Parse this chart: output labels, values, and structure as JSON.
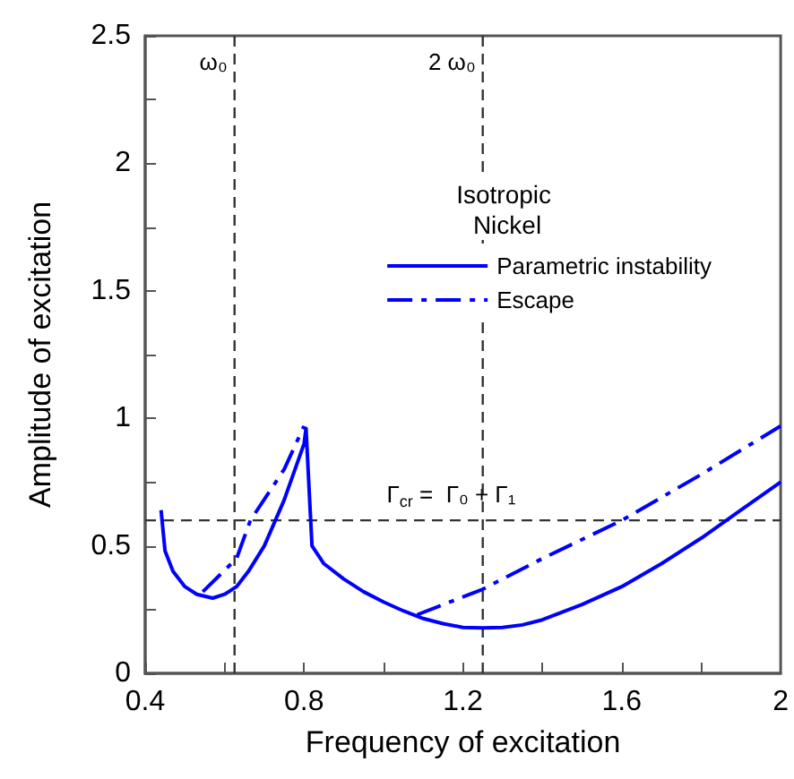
{
  "chart_data": {
    "type": "line",
    "xlabel": "Frequency of excitation",
    "ylabel": "Amplitude of excitation",
    "legend_title": "Isotropic Nickel",
    "xlim": [
      0.4,
      2
    ],
    "xticks": [
      0.4,
      {
        "value": 0.6,
        "label": null
      },
      0.8,
      {
        "value": 1.0,
        "label": null
      },
      1.2,
      {
        "value": 1.4,
        "label": null
      },
      1.6,
      {
        "value": 1.8,
        "label": null
      },
      2
    ],
    "ylim": [
      0,
      2.5
    ],
    "yticks": [
      0,
      {
        "value": 0.25,
        "label": null
      },
      0.5,
      {
        "value": 0.75,
        "label": null
      },
      1,
      {
        "value": 1.25,
        "label": null
      },
      1.5,
      {
        "value": 1.75,
        "label": null
      },
      2,
      {
        "value": 2.25,
        "label": null
      },
      2.5
    ],
    "grid": false,
    "legend": "top right",
    "marker": "none",
    "series": [
      {
        "name": "Parametric instability",
        "color": "#0000ff",
        "line_style": "solid",
        "x": [
          0.44,
          0.45,
          0.47,
          0.5,
          0.53,
          0.57,
          0.6,
          0.63,
          0.66,
          0.7,
          0.75,
          0.8,
          0.805,
          0.82,
          0.85,
          0.9,
          0.95,
          1.0,
          1.05,
          1.1,
          1.15,
          1.2,
          1.25,
          1.3,
          1.35,
          1.4,
          1.45,
          1.5,
          1.6,
          1.7,
          1.8,
          1.9,
          2.0
        ],
        "values": [
          0.64,
          0.48,
          0.4,
          0.34,
          0.31,
          0.295,
          0.31,
          0.34,
          0.4,
          0.5,
          0.68,
          0.9,
          0.96,
          0.5,
          0.43,
          0.37,
          0.32,
          0.28,
          0.245,
          0.215,
          0.195,
          0.18,
          0.178,
          0.18,
          0.19,
          0.21,
          0.24,
          0.27,
          0.34,
          0.43,
          0.53,
          0.64,
          0.75
        ]
      },
      {
        "name": "Escape",
        "color": "#0000ff",
        "line_style": "dashdot",
        "x": [
          0.545,
          0.63,
          0.665,
          0.75,
          0.8,
          0.95,
          1.085,
          1.25,
          1.4,
          1.6,
          1.8,
          2.0
        ],
        "values": [
          0.32,
          0.45,
          0.6,
          0.8,
          0.97,
          null,
          0.23,
          0.33,
          0.45,
          0.6,
          0.78,
          0.97
        ]
      }
    ],
    "ref_lines": [
      {
        "axis": "x",
        "value": 0.625,
        "label": "ω₀",
        "color": "#333333",
        "line_style": "dashed"
      },
      {
        "axis": "x",
        "value": 1.25,
        "label": "2 ω₀",
        "color": "#333333",
        "line_style": "dashed"
      },
      {
        "axis": "y",
        "value": 0.6,
        "label": "Γ$_{cr}$ =  Γ₀ + Γ₁",
        "color": "#333333",
        "line_style": "dashed"
      }
    ]
  }
}
